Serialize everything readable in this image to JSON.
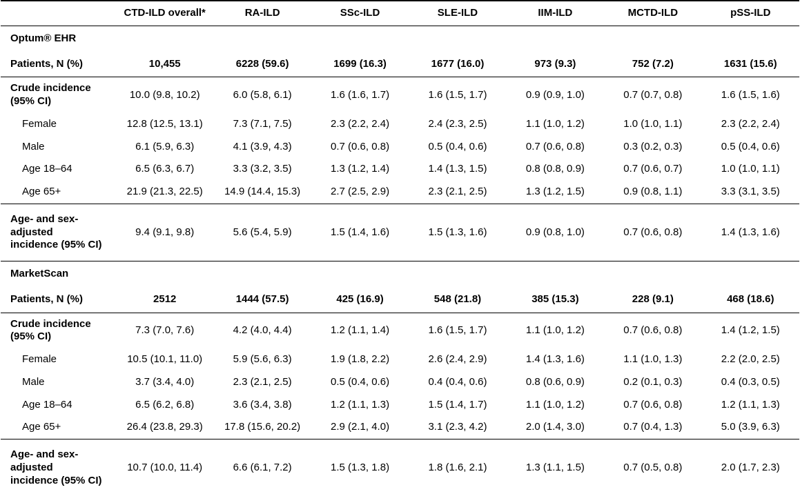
{
  "table": {
    "corner_label": "",
    "columns": [
      "CTD-ILD overall*",
      "RA-ILD",
      "SSc-ILD",
      "SLE-ILD",
      "IIM-ILD",
      "MCTD-ILD",
      "pSS-ILD"
    ],
    "sections": [
      {
        "name": "Optum® EHR",
        "rows": [
          {
            "label": "Patients, N (%)",
            "type": "patients",
            "values": [
              "10,455",
              "6228 (59.6)",
              "1699 (16.3)",
              "1677 (16.0)",
              "973 (9.3)",
              "752 (7.2)",
              "1631 (15.6)"
            ]
          },
          {
            "label": "Crude incidence (95% CI)",
            "type": "crude",
            "values": [
              "10.0 (9.8, 10.2)",
              "6.0 (5.8, 6.1)",
              "1.6 (1.6, 1.7)",
              "1.6 (1.5, 1.7)",
              "0.9 (0.9, 1.0)",
              "0.7 (0.7, 0.8)",
              "1.6 (1.5, 1.6)"
            ]
          },
          {
            "label": "Female",
            "type": "sub",
            "values": [
              "12.8 (12.5, 13.1)",
              "7.3 (7.1, 7.5)",
              "2.3 (2.2, 2.4)",
              "2.4 (2.3, 2.5)",
              "1.1 (1.0, 1.2)",
              "1.0 (1.0, 1.1)",
              "2.3 (2.2, 2.4)"
            ]
          },
          {
            "label": "Male",
            "type": "sub",
            "values": [
              "6.1 (5.9, 6.3)",
              "4.1 (3.9, 4.3)",
              "0.7 (0.6, 0.8)",
              "0.5 (0.4, 0.6)",
              "0.7 (0.6, 0.8)",
              "0.3 (0.2, 0.3)",
              "0.5 (0.4, 0.6)"
            ]
          },
          {
            "label": "Age 18–64",
            "type": "sub",
            "values": [
              "6.5 (6.3, 6.7)",
              "3.3 (3.2, 3.5)",
              "1.3 (1.2, 1.4)",
              "1.4 (1.3, 1.5)",
              "0.8 (0.8, 0.9)",
              "0.7 (0.6, 0.7)",
              "1.0 (1.0, 1.1)"
            ]
          },
          {
            "label": "Age 65+",
            "type": "sub",
            "values": [
              "21.9 (21.3, 22.5)",
              "14.9 (14.4, 15.3)",
              "2.7 (2.5, 2.9)",
              "2.3 (2.1, 2.5)",
              "1.3 (1.2, 1.5)",
              "0.9 (0.8, 1.1)",
              "3.3 (3.1, 3.5)"
            ]
          },
          {
            "label": "Age- and sex-adjusted incidence (95% CI)",
            "type": "adjusted",
            "values": [
              "9.4 (9.1, 9.8)",
              "5.6 (5.4, 5.9)",
              "1.5 (1.4, 1.6)",
              "1.5 (1.3, 1.6)",
              "0.9 (0.8, 1.0)",
              "0.7 (0.6, 0.8)",
              "1.4 (1.3, 1.6)"
            ]
          }
        ]
      },
      {
        "name": "MarketScan",
        "rows": [
          {
            "label": "Patients, N (%)",
            "type": "patients",
            "values": [
              "2512",
              "1444 (57.5)",
              "425 (16.9)",
              "548 (21.8)",
              "385 (15.3)",
              "228 (9.1)",
              "468 (18.6)"
            ]
          },
          {
            "label": "Crude incidence (95% CI)",
            "type": "crude",
            "values": [
              "7.3 (7.0, 7.6)",
              "4.2 (4.0, 4.4)",
              "1.2 (1.1, 1.4)",
              "1.6 (1.5, 1.7)",
              "1.1 (1.0, 1.2)",
              "0.7 (0.6, 0.8)",
              "1.4 (1.2, 1.5)"
            ]
          },
          {
            "label": "Female",
            "type": "sub",
            "values": [
              "10.5 (10.1, 11.0)",
              "5.9 (5.6, 6.3)",
              "1.9 (1.8, 2.2)",
              "2.6 (2.4, 2.9)",
              "1.4 (1.3, 1.6)",
              "1.1 (1.0, 1.3)",
              "2.2 (2.0, 2.5)"
            ]
          },
          {
            "label": "Male",
            "type": "sub",
            "values": [
              "3.7 (3.4, 4.0)",
              "2.3 (2.1, 2.5)",
              "0.5 (0.4, 0.6)",
              "0.4 (0.4, 0.6)",
              "0.8 (0.6, 0.9)",
              "0.2 (0.1, 0.3)",
              "0.4 (0.3, 0.5)"
            ]
          },
          {
            "label": "Age 18–64",
            "type": "sub",
            "values": [
              "6.5 (6.2, 6.8)",
              "3.6 (3.4, 3.8)",
              "1.2 (1.1, 1.3)",
              "1.5 (1.4, 1.7)",
              "1.1 (1.0, 1.2)",
              "0.7 (0.6, 0.8)",
              "1.2 (1.1, 1.3)"
            ]
          },
          {
            "label": "Age 65+",
            "type": "sub",
            "values": [
              "26.4 (23.8, 29.3)",
              "17.8 (15.6, 20.2)",
              "2.9 (2.1, 4.0)",
              "3.1 (2.3, 4.2)",
              "2.0 (1.4, 3.0)",
              "0.7 (0.4, 1.3)",
              "5.0 (3.9, 6.3)"
            ]
          },
          {
            "label": "Age- and sex-adjusted incidence (95% CI)",
            "type": "adjusted",
            "values": [
              "10.7 (10.0, 11.4)",
              "6.6 (6.1, 7.2)",
              "1.5 (1.3, 1.8)",
              "1.8 (1.6, 2.1)",
              "1.3 (1.1, 1.5)",
              "0.7 (0.5, 0.8)",
              "2.0 (1.7, 2.3)"
            ]
          }
        ]
      }
    ]
  },
  "colors": {
    "border": "#000000",
    "text": "#000000",
    "background": "#ffffff"
  }
}
